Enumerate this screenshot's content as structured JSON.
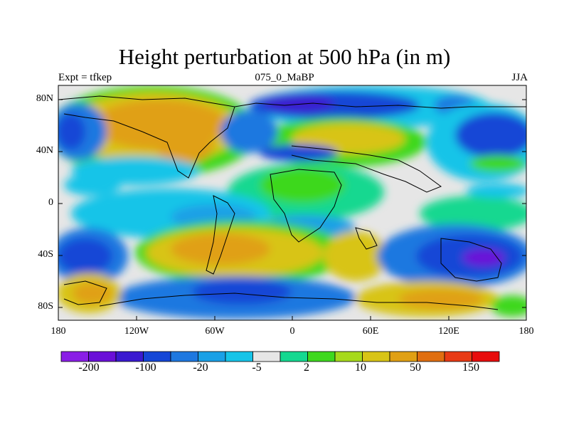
{
  "title": "Height perturbation at 500 hPa (in m)",
  "left_subtitle": "Expt = tfkep",
  "center_subtitle": "075_0_MaBP",
  "right_subtitle": "JJA",
  "y_ticks": [
    "80N",
    "40N",
    "0",
    "40S",
    "80S"
  ],
  "x_ticks": [
    "180",
    "120W",
    "60W",
    "0",
    "60E",
    "120E",
    "180"
  ],
  "colorbar": {
    "colors": [
      "#8a1ee6",
      "#6a10d8",
      "#3a1ad0",
      "#1446d6",
      "#1e78e0",
      "#1aa0e6",
      "#16c4e8",
      "#e6e6e6",
      "#14d890",
      "#3ed81e",
      "#a6d91c",
      "#d8c416",
      "#e0a014",
      "#e06e10",
      "#e83a14",
      "#e80c0c"
    ],
    "labels": [
      "-200",
      "-100",
      "-20",
      "-5",
      "2",
      "10",
      "50",
      "150"
    ]
  },
  "chart_data": {
    "type": "heatmap",
    "title": "Height perturbation at 500 hPa (in m)",
    "x_range": [
      -180,
      180
    ],
    "y_range": [
      -90,
      90
    ],
    "xticks": [
      "180",
      "120W",
      "60W",
      "0",
      "60E",
      "120E",
      "180"
    ],
    "yticks": [
      "80N",
      "40N",
      "0",
      "40S",
      "80S"
    ],
    "colorbar_levels": [
      "-200",
      "-100",
      "-20",
      "-5",
      "2",
      "10",
      "50",
      "150"
    ]
  }
}
